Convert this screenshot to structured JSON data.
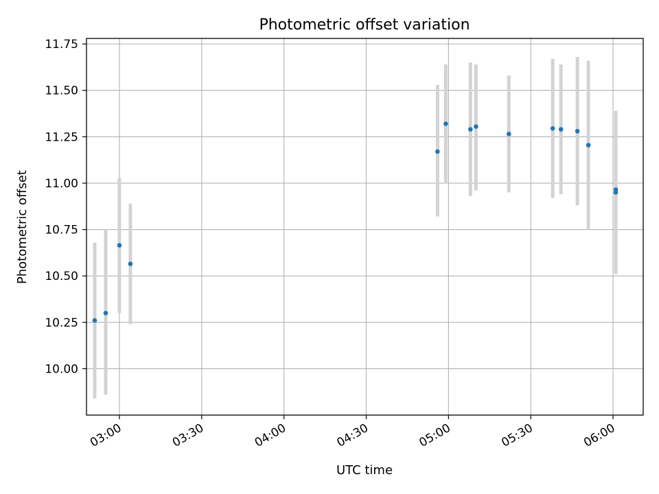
{
  "chart_data": {
    "type": "scatter",
    "title": "Photometric offset variation",
    "xlabel": "UTC time",
    "ylabel": "Photometric offset",
    "x_ticks": [
      "03:00",
      "03:30",
      "04:00",
      "04:30",
      "05:00",
      "05:30",
      "06:00"
    ],
    "y_ticks": [
      "10.00",
      "10.25",
      "10.50",
      "10.75",
      "11.00",
      "11.25",
      "11.50",
      "11.75"
    ],
    "xlim": [
      "02:48",
      "06:11"
    ],
    "ylim": [
      9.75,
      11.78
    ],
    "grid": true,
    "colors": {
      "point": "#1f77b4",
      "errorbar": "#d3d3d3",
      "grid": "#b0b0b0"
    },
    "points": [
      {
        "x": "02:51",
        "y": 10.26,
        "yerr_low": 9.84,
        "yerr_high": 10.68
      },
      {
        "x": "02:55",
        "y": 10.3,
        "yerr_low": 9.86,
        "yerr_high": 10.75
      },
      {
        "x": "03:00",
        "y": 10.665,
        "yerr_low": 10.3,
        "yerr_high": 11.03
      },
      {
        "x": "03:04",
        "y": 10.565,
        "yerr_low": 10.24,
        "yerr_high": 10.89
      },
      {
        "x": "04:56",
        "y": 11.17,
        "yerr_low": 10.82,
        "yerr_high": 11.53
      },
      {
        "x": "04:59",
        "y": 11.32,
        "yerr_low": 11.0,
        "yerr_high": 11.64
      },
      {
        "x": "05:08",
        "y": 11.29,
        "yerr_low": 10.93,
        "yerr_high": 11.65
      },
      {
        "x": "05:10",
        "y": 11.305,
        "yerr_low": 10.96,
        "yerr_high": 11.64
      },
      {
        "x": "05:22",
        "y": 11.265,
        "yerr_low": 10.95,
        "yerr_high": 11.58
      },
      {
        "x": "05:38",
        "y": 11.295,
        "yerr_low": 10.92,
        "yerr_high": 11.67
      },
      {
        "x": "05:41",
        "y": 11.29,
        "yerr_low": 10.94,
        "yerr_high": 11.64
      },
      {
        "x": "05:47",
        "y": 11.28,
        "yerr_low": 10.88,
        "yerr_high": 11.68
      },
      {
        "x": "05:51",
        "y": 11.205,
        "yerr_low": 10.75,
        "yerr_high": 11.66
      },
      {
        "x": "06:01",
        "y": 10.965,
        "yerr_low": 10.57,
        "yerr_high": 11.37
      },
      {
        "x": "06:01",
        "y": 10.95,
        "yerr_low": 10.51,
        "yerr_high": 11.39
      }
    ]
  }
}
